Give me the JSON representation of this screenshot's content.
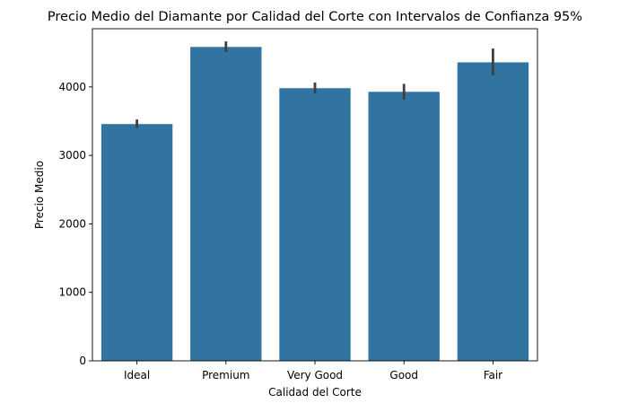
{
  "chart_data": {
    "type": "bar",
    "title": "Precio Medio del Diamante por Calidad del Corte con Intervalos de Confianza 95%",
    "xlabel": "Calidad del Corte",
    "ylabel": "Precio Medio",
    "categories": [
      "Ideal",
      "Premium",
      "Very Good",
      "Good",
      "Fair"
    ],
    "values": [
      3458,
      4584,
      3982,
      3929,
      4359
    ],
    "ci_low": [
      3400,
      4510,
      3905,
      3815,
      4170
    ],
    "ci_high": [
      3525,
      4665,
      4065,
      4045,
      4560
    ],
    "ylim": [
      0,
      4850
    ],
    "yticks": [
      0,
      1000,
      2000,
      3000,
      4000
    ],
    "bar_color": "#3274a1",
    "errorbar_color": "#3f3f3f",
    "grid": false,
    "legend": "none"
  }
}
